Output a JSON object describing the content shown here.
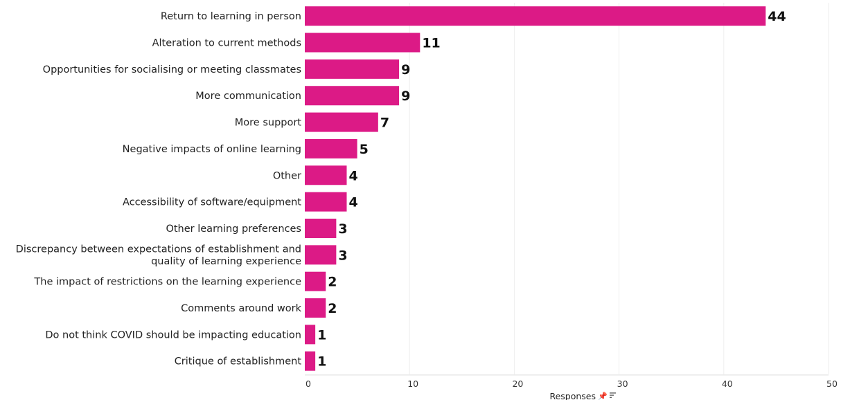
{
  "chart_data": {
    "type": "bar",
    "orientation": "horizontal",
    "categories": [
      [
        "Return to learning in person"
      ],
      [
        "Alteration to current methods"
      ],
      [
        "Opportunities for socialising or meeting classmates"
      ],
      [
        "More communication"
      ],
      [
        "More support"
      ],
      [
        "Negative impacts of online learning"
      ],
      [
        "Other"
      ],
      [
        "Accessibility of software/equipment"
      ],
      [
        "Other learning preferences"
      ],
      [
        "Discrepancy between expectations of establishment and",
        "quality of learning experience"
      ],
      [
        "The impact of restrictions on the learning experience"
      ],
      [
        "Comments around work"
      ],
      [
        "Do not think COVID should be impacting education"
      ],
      [
        "Critique of establishment"
      ]
    ],
    "values": [
      44,
      11,
      9,
      9,
      7,
      5,
      4,
      4,
      3,
      3,
      2,
      2,
      1,
      1
    ],
    "xlabel": "Responses",
    "xlim": [
      0,
      50
    ],
    "xticks": [
      0,
      10,
      20,
      30,
      40,
      50
    ],
    "grid": true,
    "legend": "none",
    "bar_color": "#dc1a86",
    "axis_title_icons": [
      "pin-icon",
      "sort-icon"
    ]
  }
}
